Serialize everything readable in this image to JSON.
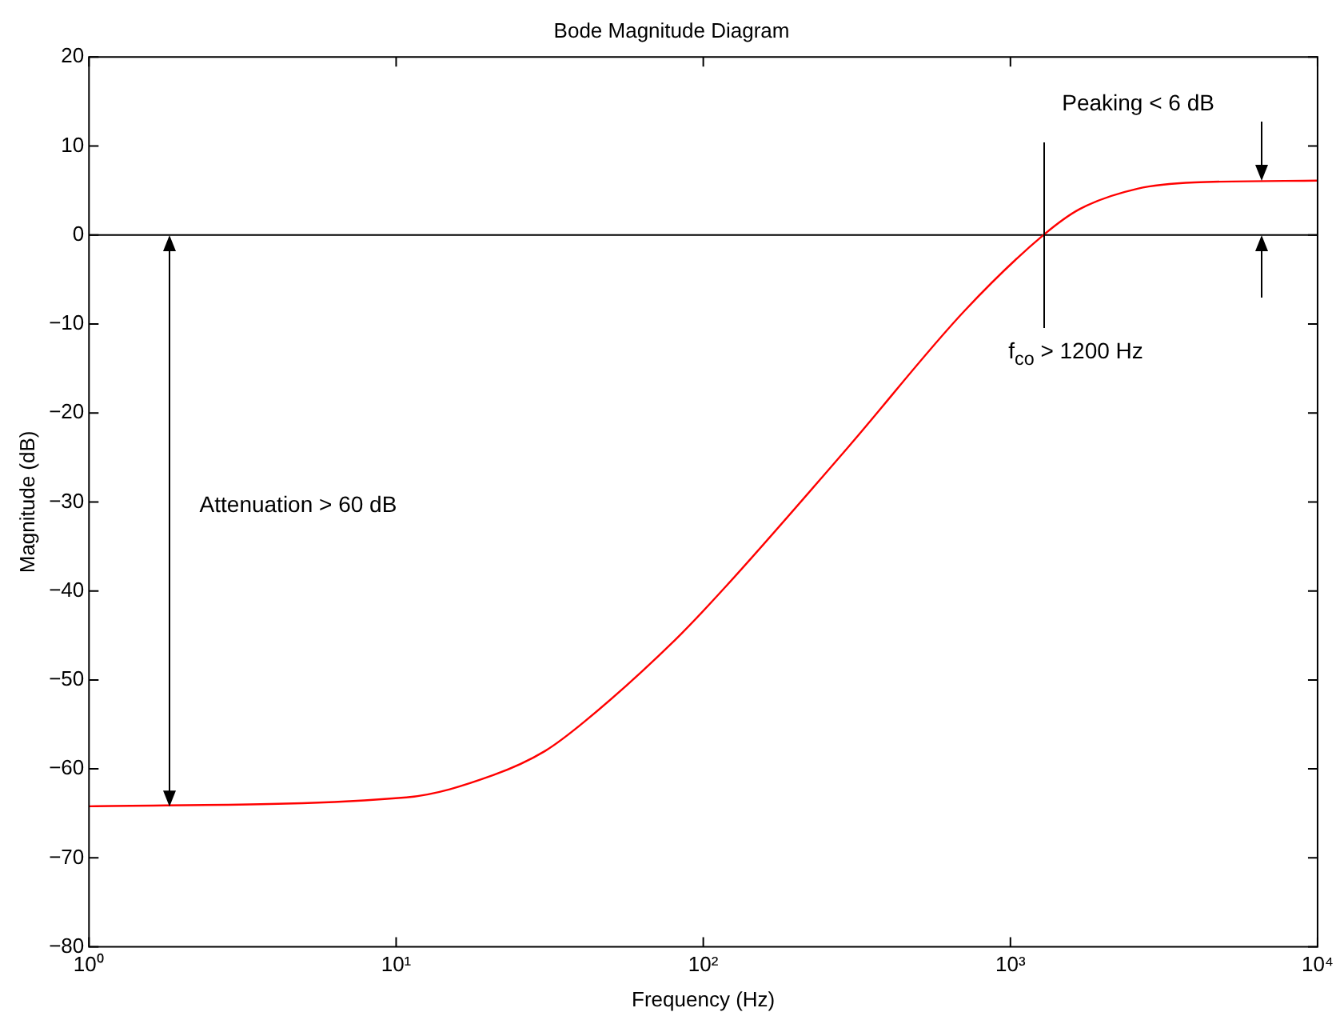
{
  "chart_data": {
    "type": "line",
    "title": "Bode Magnitude Diagram",
    "xlabel": "Frequency (Hz)",
    "ylabel": "Magnitude (dB)",
    "log": "x",
    "series": [
      {
        "color": "#ff0000",
        "x": [
          1,
          10.8,
          20.7,
          30.5,
          41,
          81,
          117,
          297,
          710,
          1282,
          1680,
          2594,
          3980,
          10000
        ],
        "values": [
          -64.2,
          -63.2,
          -60.7,
          -58,
          -54.7,
          -45.5,
          -39.7,
          -23.8,
          -8.5,
          0,
          2.9,
          5.2,
          5.9,
          6.1
        ]
      }
    ],
    "xlim": [
      1,
      10000
    ],
    "xticks": [
      {
        "value": 1,
        "label": "10⁰"
      },
      {
        "value": 10,
        "label": "10¹"
      },
      {
        "value": 100,
        "label": "10²"
      },
      {
        "value": 1000,
        "label": "10³"
      },
      {
        "value": 10000,
        "label": "10⁴"
      }
    ],
    "ylim": [
      -80,
      20
    ],
    "yticks": [
      {
        "value": -80,
        "label": "−80"
      },
      {
        "value": -70,
        "label": "−70"
      },
      {
        "value": -60,
        "label": "−60"
      },
      {
        "value": -50,
        "label": "−50"
      },
      {
        "value": -40,
        "label": "−40"
      },
      {
        "value": -30,
        "label": "−30"
      },
      {
        "value": -20,
        "label": "−20"
      },
      {
        "value": -10,
        "label": "−10"
      },
      0,
      10,
      20
    ],
    "ref_lines": [
      {
        "axis": "y",
        "value": 0,
        "color": "#000000"
      }
    ],
    "annotations": [
      "Attenuation > 60 dB",
      "f$_{co}$ > 1200 Hz",
      "Peaking < 6 dB"
    ],
    "grid": false,
    "legend": false,
    "marker": "none",
    "line_style": "solid"
  }
}
